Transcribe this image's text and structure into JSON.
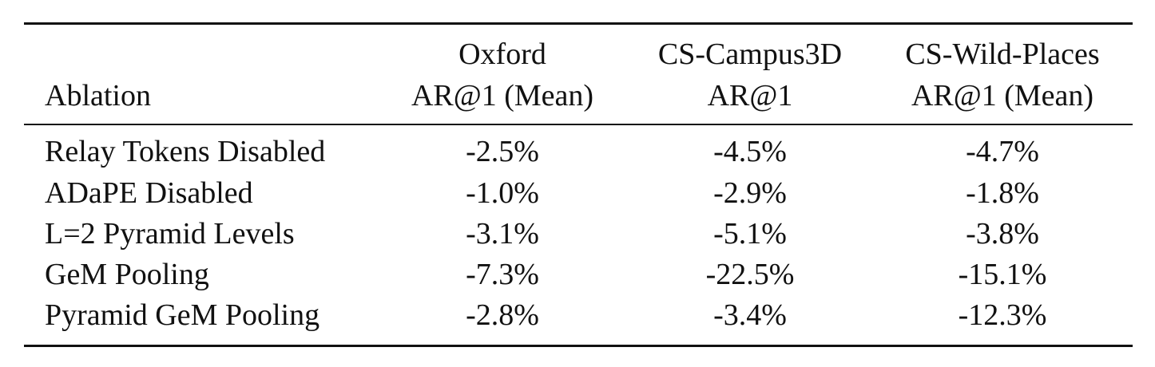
{
  "table": {
    "headers": {
      "ablation": "Ablation",
      "oxford": [
        "Oxford",
        "AR@1 (Mean)"
      ],
      "campus": [
        "CS-Campus3D",
        "AR@1"
      ],
      "wild": [
        "CS-Wild-Places",
        "AR@1 (Mean)"
      ]
    },
    "rows": [
      {
        "name": "Relay Tokens Disabled",
        "oxford": "-2.5%",
        "campus": "-4.5%",
        "wild": "-4.7%"
      },
      {
        "name": "ADaPE Disabled",
        "oxford": "-1.0%",
        "campus": "-2.9%",
        "wild": "-1.8%"
      },
      {
        "name": "L=2 Pyramid Levels",
        "oxford": "-3.1%",
        "campus": "-5.1%",
        "wild": "-3.8%"
      },
      {
        "name": "GeM Pooling",
        "oxford": "-7.3%",
        "campus": "-22.5%",
        "wild": "-15.1%"
      },
      {
        "name": "Pyramid GeM Pooling",
        "oxford": "-2.8%",
        "campus": "-3.4%",
        "wild": "-12.3%"
      }
    ]
  }
}
